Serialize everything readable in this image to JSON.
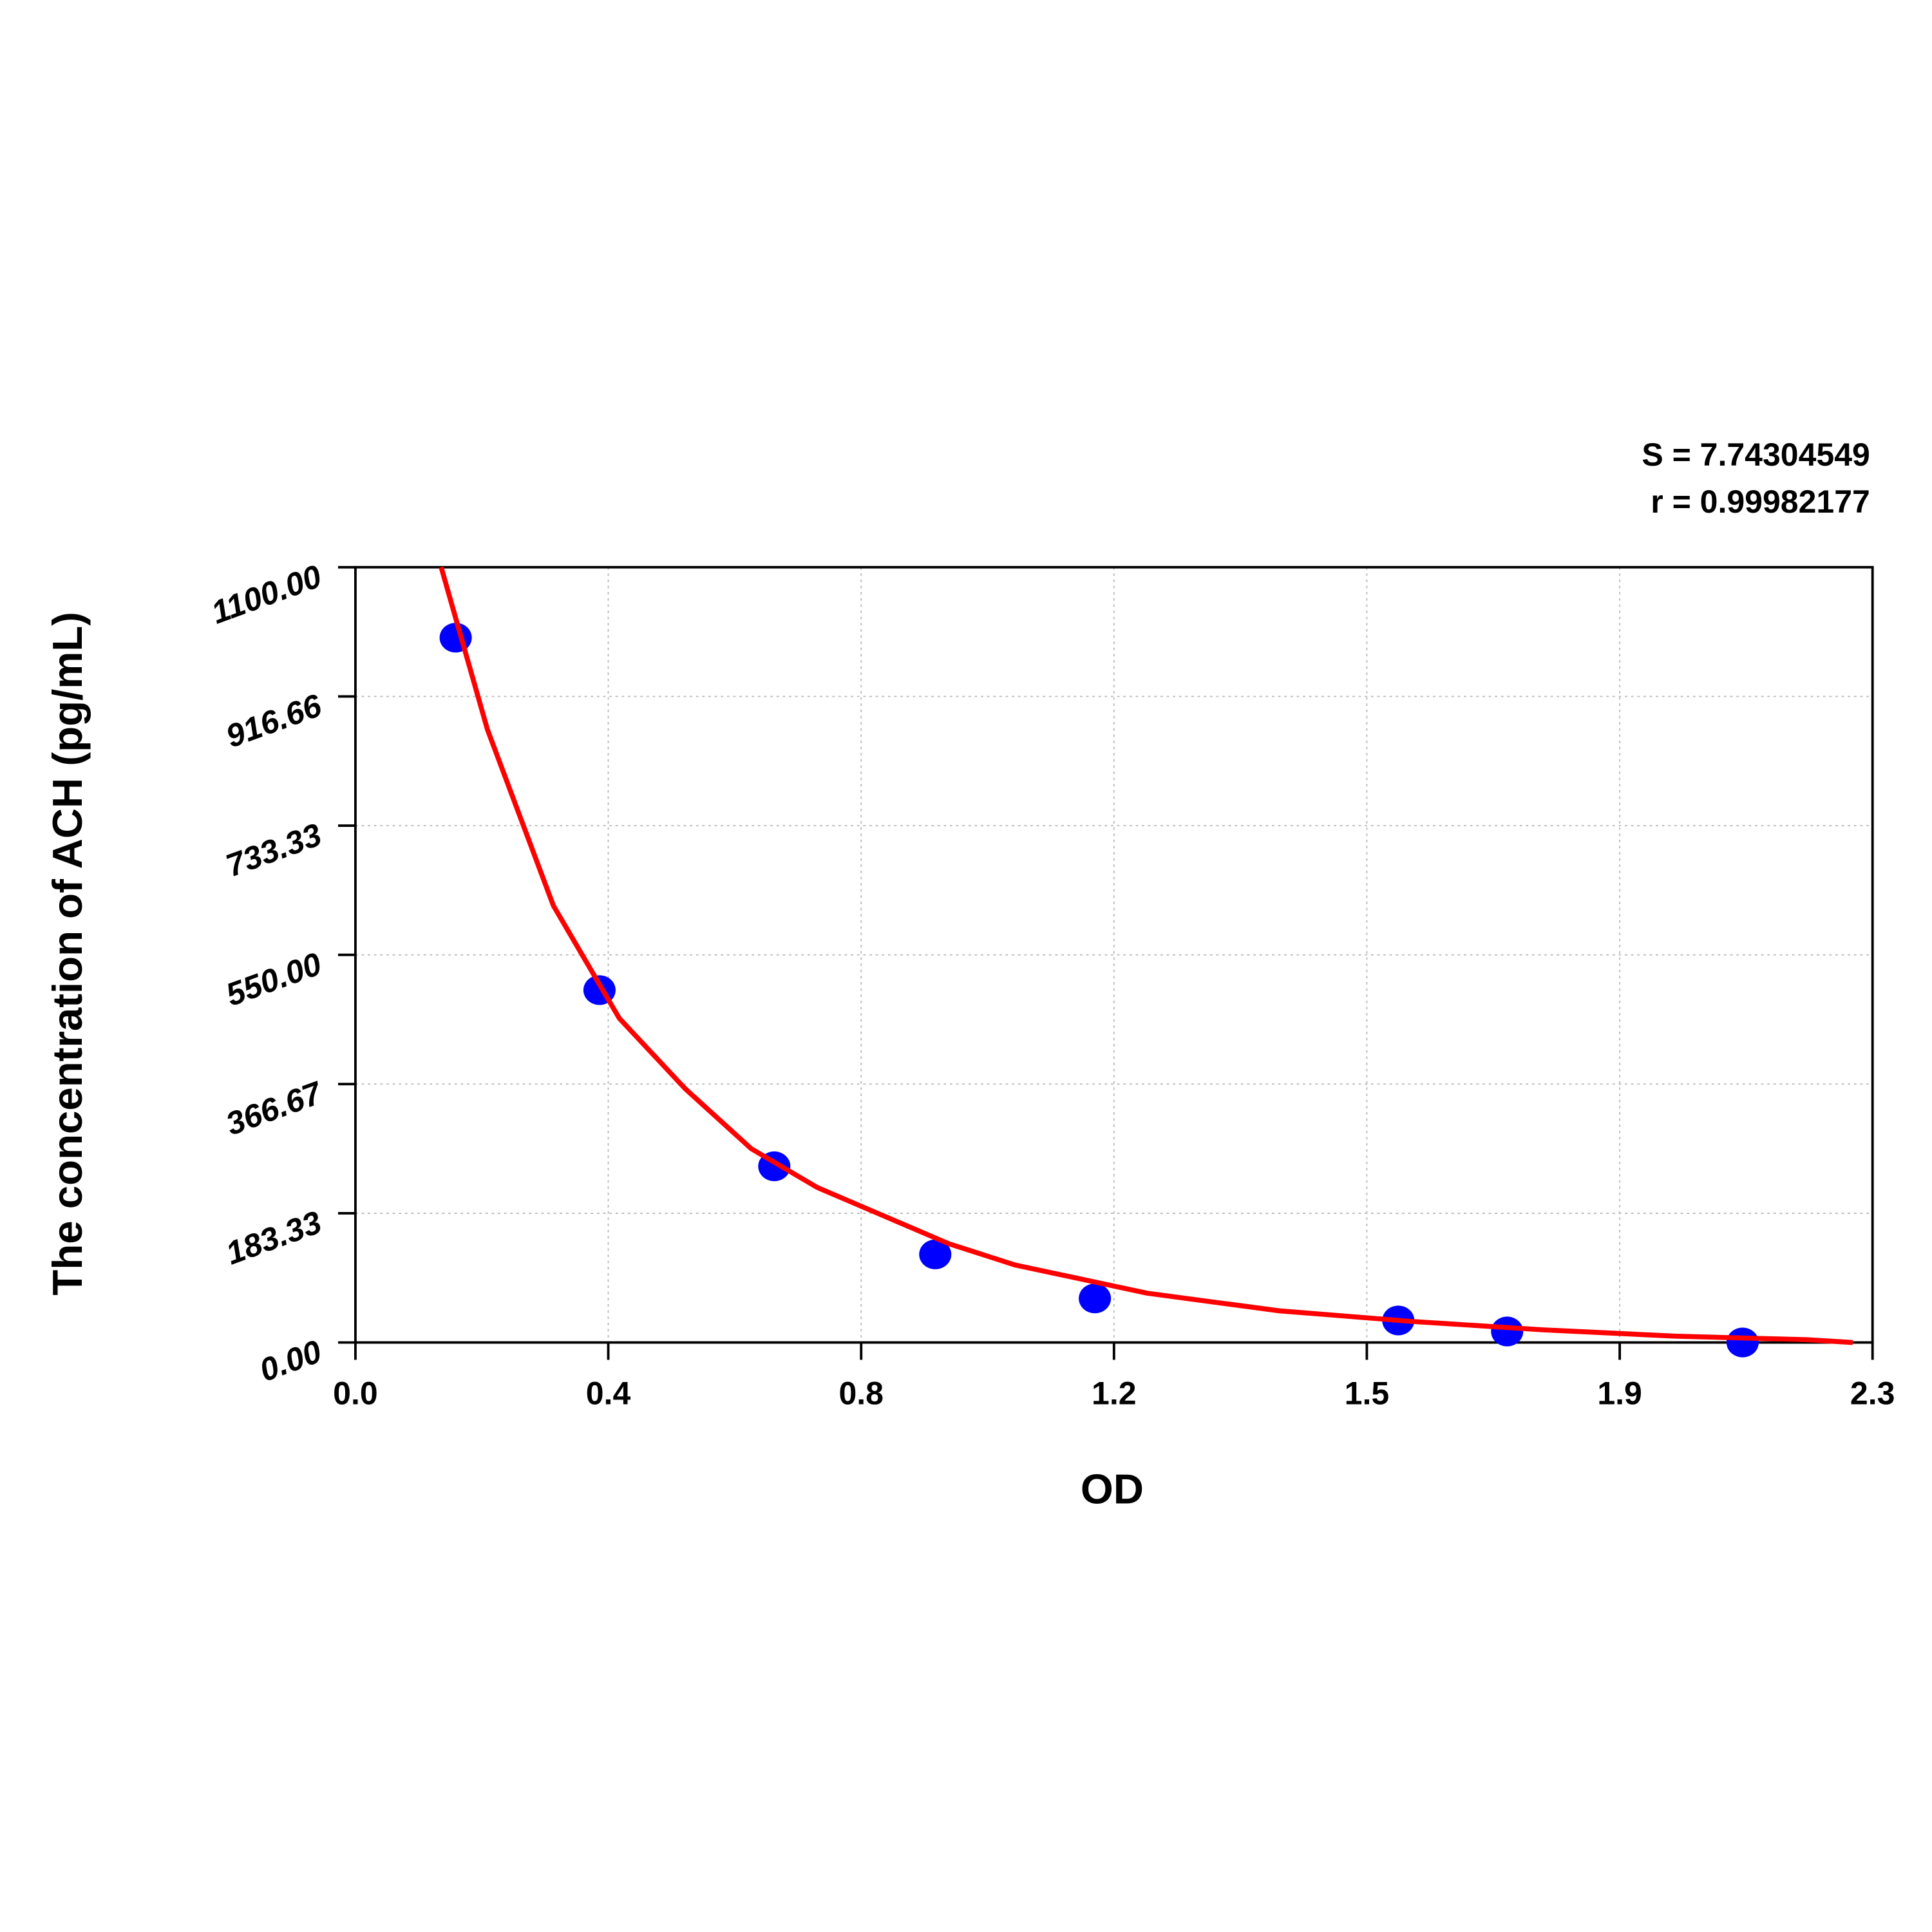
{
  "chart_data": {
    "type": "scatter",
    "annotations": [
      "S = 7.74304549",
      "r = 0.99982177"
    ],
    "x_label": "OD",
    "y_label": "The concentration of ACH (pg/mL)",
    "xlim": [
      0,
      2.3
    ],
    "ylim": [
      0,
      1100
    ],
    "xticks": [
      {
        "value": 0,
        "label": "0.0"
      },
      {
        "value": 0.3833,
        "label": "0.4"
      },
      {
        "value": 0.7667,
        "label": "0.8"
      },
      {
        "value": 1.15,
        "label": "1.2"
      },
      {
        "value": 1.5333,
        "label": "1.5"
      },
      {
        "value": 1.9167,
        "label": "1.9"
      },
      2.3
    ],
    "yticks": [
      {
        "value": 0,
        "label": "0.00"
      },
      183.33,
      366.67,
      {
        "value": 550,
        "label": "550.00"
      },
      733.33,
      916.66,
      {
        "value": 1100,
        "label": "1100.00"
      }
    ],
    "grid": true,
    "series": [
      {
        "type": "scatter",
        "color": "#0000ff",
        "x": [
          0.152,
          0.37,
          0.635,
          0.879,
          1.121,
          1.581,
          1.746,
          2.103
        ],
        "values": [
          1000,
          500,
          250,
          125,
          62.5,
          31.25,
          15.63,
          0
        ]
      },
      {
        "type": "line",
        "color": "#ff0000",
        "x": [
          0.13,
          0.2,
          0.3,
          0.4,
          0.5,
          0.6,
          0.7,
          0.8,
          0.9,
          1.0,
          1.2,
          1.4,
          1.6,
          1.8,
          2.0,
          2.2,
          2.27
        ],
        "values": [
          1100,
          870,
          620,
          460,
          360,
          275,
          220,
          180,
          140,
          110,
          70,
          45,
          30,
          18,
          9,
          4,
          0
        ]
      }
    ]
  }
}
